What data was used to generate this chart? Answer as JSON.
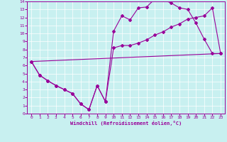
{
  "xlabel": "Windchill (Refroidissement éolien,°C)",
  "bg_color": "#c8f0f0",
  "line_color": "#990099",
  "grid_color": "#ffffff",
  "xlim": [
    -0.5,
    23.5
  ],
  "ylim": [
    0,
    14
  ],
  "xticks": [
    0,
    1,
    2,
    3,
    4,
    5,
    6,
    7,
    8,
    9,
    10,
    11,
    12,
    13,
    14,
    15,
    16,
    17,
    18,
    19,
    20,
    21,
    22,
    23
  ],
  "yticks": [
    0,
    1,
    2,
    3,
    4,
    5,
    6,
    7,
    8,
    9,
    10,
    11,
    12,
    13,
    14
  ],
  "line1_x": [
    0,
    1,
    2,
    3,
    4,
    5,
    6,
    7,
    8,
    9,
    10,
    11,
    12,
    13,
    14,
    15,
    16,
    17,
    18,
    19,
    20,
    21,
    22,
    23
  ],
  "line1_y": [
    6.5,
    4.8,
    4.1,
    3.5,
    3.0,
    2.5,
    1.2,
    0.5,
    3.5,
    1.5,
    10.3,
    12.2,
    11.7,
    13.2,
    13.3,
    14.3,
    14.2,
    13.8,
    13.2,
    13.0,
    11.3,
    9.3,
    7.5,
    7.5
  ],
  "line2_x": [
    0,
    1,
    2,
    3,
    4,
    5,
    6,
    7,
    8,
    9,
    10,
    11,
    12,
    13,
    14,
    15,
    16,
    17,
    18,
    19,
    20,
    21,
    22,
    23
  ],
  "line2_y": [
    6.5,
    4.8,
    4.1,
    3.5,
    3.0,
    2.5,
    1.2,
    0.5,
    3.5,
    1.5,
    8.2,
    8.5,
    8.5,
    8.8,
    9.2,
    9.8,
    10.2,
    10.8,
    11.2,
    11.8,
    12.0,
    12.2,
    13.2,
    7.5
  ],
  "line3_x": [
    0,
    23
  ],
  "line3_y": [
    6.5,
    7.5
  ]
}
